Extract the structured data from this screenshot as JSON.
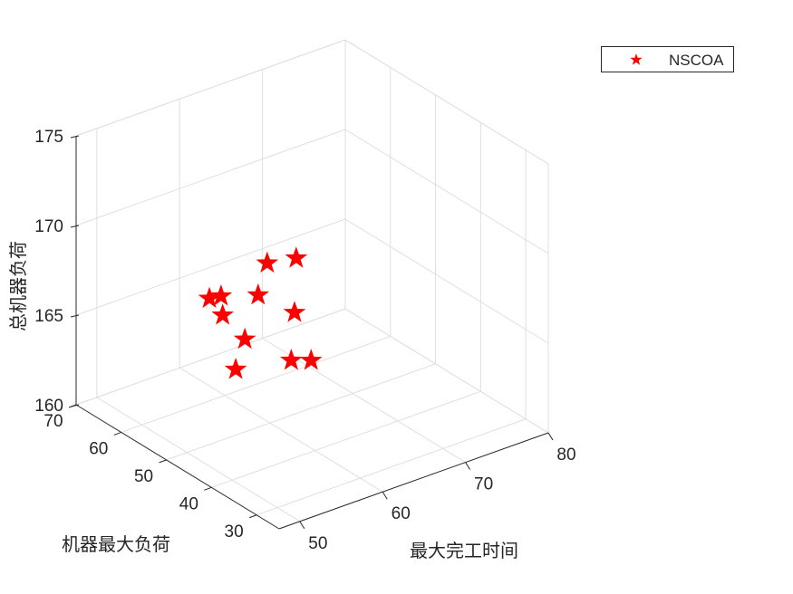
{
  "chart_data": {
    "type": "scatter3d",
    "title": "",
    "xlabel": "最大完工时间",
    "ylabel": "机器最大负荷",
    "zlabel": "总机器负荷",
    "xlim": [
      47.5,
      80
    ],
    "ylim": [
      25,
      70
    ],
    "zlim": [
      160,
      175
    ],
    "xticks": [
      50,
      60,
      70,
      80
    ],
    "yticks": [
      30,
      40,
      50,
      60,
      70
    ],
    "zticks": [
      160,
      165,
      170,
      175
    ],
    "grid": true,
    "legend": {
      "placement": "top-right",
      "entries": [
        "NSCOA"
      ]
    },
    "series": [
      {
        "name": "NSCOA",
        "marker": "pentagram",
        "color": "#ff0000",
        "x": [
          62.4,
          65.9,
          52.7,
          54.1,
          61.3,
          54.3,
          65.7,
          59.7,
          58.6,
          65.3,
          67.7
        ],
        "y": [
          55,
          55,
          50,
          50,
          55,
          50,
          55,
          55,
          55,
          55,
          55
        ],
        "z": [
          167.8,
          167.5,
          168.2,
          168.1,
          166.2,
          167.0,
          164.5,
          164.0,
          162.5,
          161.9,
          161.5
        ]
      }
    ]
  }
}
